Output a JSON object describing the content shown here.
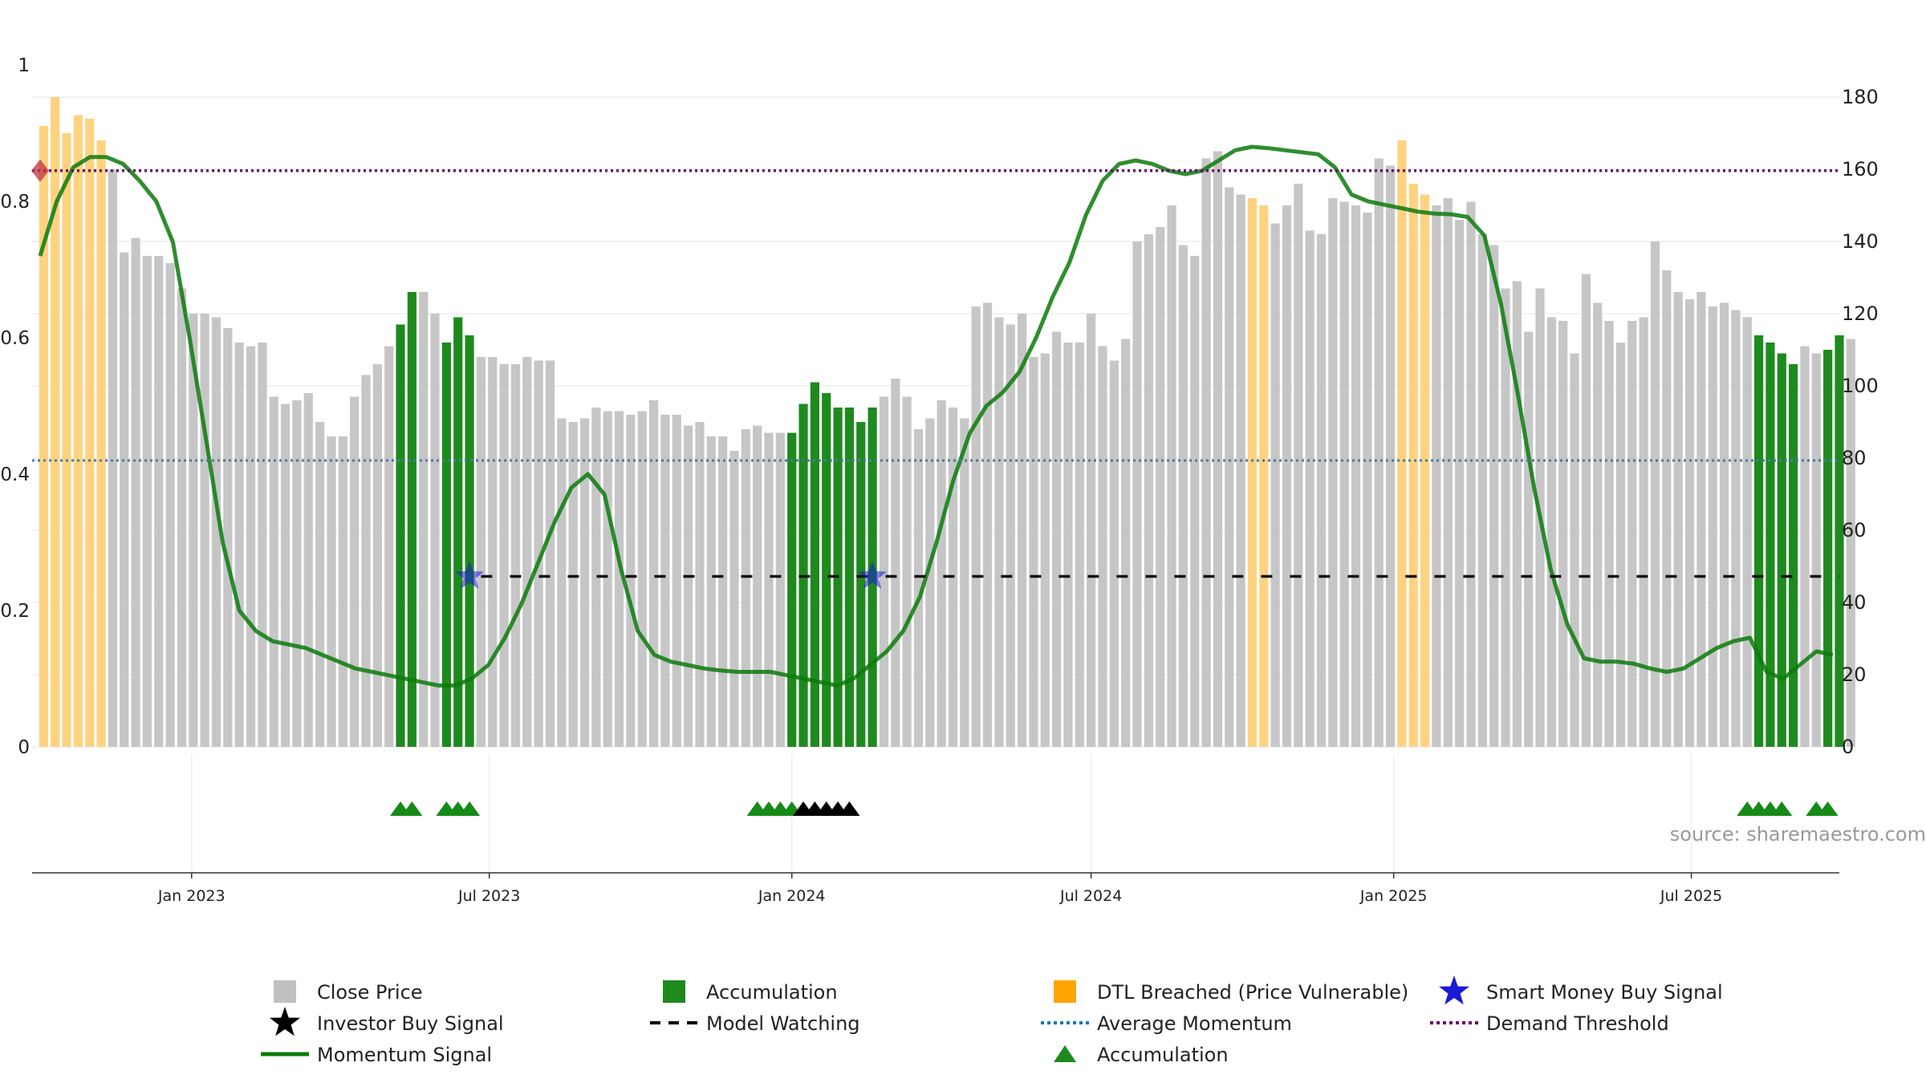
{
  "chart_data": {
    "type": "bar",
    "title": "",
    "xlabel": "",
    "ylabel": "",
    "source_label": "source: sharemaestro.com",
    "x_axis": {
      "start": "2022-09-26",
      "end": "2025-09-29",
      "tick_labels": [
        "Jan 2023",
        "Jul 2023",
        "Jan 2024",
        "Jul 2024",
        "Jan 2025",
        "Jul 2025"
      ],
      "tick_dates": [
        "2023-01-01",
        "2023-07-01",
        "2024-01-01",
        "2024-07-01",
        "2025-01-01",
        "2025-07-01"
      ]
    },
    "left_axis": {
      "ylim": [
        0,
        1
      ],
      "tick_labels": [
        "0",
        "0.2",
        "0.4",
        "0.6",
        "0.8",
        "1"
      ],
      "ticks": [
        0,
        0.2,
        0.4,
        0.6,
        0.8,
        1
      ]
    },
    "right_axis": {
      "ylim": [
        0,
        180
      ],
      "tick_labels": [
        "0",
        "20",
        "40",
        "60",
        "80",
        "100",
        "120",
        "140",
        "160",
        "180"
      ],
      "ticks": [
        0,
        20,
        40,
        60,
        80,
        100,
        120,
        140,
        160,
        180
      ]
    },
    "grid": true,
    "legend_position": "bottom",
    "colors": {
      "close_price": "#c0c0c0",
      "accumulation": "#1e8a1e",
      "dtl_breached": "#ffd27f",
      "smart_money": "#1a1ad6",
      "investor_buy": "#000000",
      "model_watching": "#111111",
      "momentum": "#0a7a0a",
      "average_momentum": "#4a7aa0",
      "demand_threshold": "#6a0a6a"
    },
    "price_series": {
      "name": "Close Price",
      "start_date": "2022-10-03",
      "frequency": "weekly",
      "values": [
        172,
        180,
        170,
        175,
        174,
        168,
        160,
        137,
        141,
        136,
        136,
        134,
        127,
        120,
        120,
        119,
        116,
        112,
        111,
        112,
        97,
        95,
        96,
        98,
        90,
        86,
        86,
        97,
        103,
        106,
        111,
        117,
        126,
        126,
        120,
        112,
        119,
        114,
        108,
        108,
        106,
        106,
        108,
        107,
        107,
        91,
        90,
        91,
        94,
        93,
        93,
        92,
        93,
        96,
        92,
        92,
        89,
        90,
        86,
        86,
        82,
        88,
        89,
        87,
        87,
        87,
        95,
        101,
        98,
        94,
        94,
        90,
        94,
        97,
        102,
        97,
        88,
        91,
        96,
        94,
        91,
        122,
        123,
        119,
        117,
        120,
        108,
        109,
        115,
        112,
        112,
        120,
        111,
        107,
        113,
        140,
        142,
        144,
        150,
        139,
        136,
        163,
        165,
        155,
        153,
        152,
        150,
        145,
        150,
        156,
        143,
        142,
        152,
        151,
        150,
        148,
        163,
        161,
        168,
        156,
        153,
        150,
        152,
        146,
        151,
        142,
        139,
        127,
        129,
        115,
        127,
        119,
        118,
        109,
        131,
        123,
        118,
        112,
        118,
        119,
        140,
        132,
        126,
        124,
        126,
        122,
        123,
        121,
        119,
        114,
        112,
        109,
        106,
        111,
        109,
        110,
        114,
        113
      ],
      "accumulation_indices": [
        31,
        32,
        35,
        36,
        37,
        65,
        66,
        67,
        68,
        69,
        70,
        71,
        72,
        149,
        150,
        151,
        152,
        155,
        156
      ],
      "dtl_indices": [
        0,
        1,
        2,
        3,
        4,
        5,
        105,
        106,
        118,
        119,
        120
      ]
    },
    "momentum_series": {
      "name": "Momentum Signal",
      "values": [
        0.72,
        0.8,
        0.85,
        0.865,
        0.865,
        0.855,
        0.83,
        0.8,
        0.74,
        0.6,
        0.45,
        0.3,
        0.2,
        0.17,
        0.155,
        0.15,
        0.145,
        0.135,
        0.125,
        0.115,
        0.11,
        0.105,
        0.1,
        0.095,
        0.09,
        0.09,
        0.1,
        0.12,
        0.16,
        0.21,
        0.27,
        0.33,
        0.38,
        0.4,
        0.37,
        0.26,
        0.17,
        0.135,
        0.125,
        0.12,
        0.115,
        0.112,
        0.11,
        0.11,
        0.11,
        0.105,
        0.1,
        0.095,
        0.09,
        0.1,
        0.12,
        0.14,
        0.17,
        0.22,
        0.3,
        0.39,
        0.46,
        0.5,
        0.52,
        0.55,
        0.6,
        0.66,
        0.71,
        0.78,
        0.83,
        0.855,
        0.86,
        0.855,
        0.845,
        0.84,
        0.845,
        0.86,
        0.875,
        0.88,
        0.878,
        0.875,
        0.872,
        0.869,
        0.85,
        0.81,
        0.8,
        0.795,
        0.79,
        0.785,
        0.782,
        0.781,
        0.777,
        0.75,
        0.65,
        0.52,
        0.38,
        0.26,
        0.18,
        0.13,
        0.125,
        0.125,
        0.122,
        0.115,
        0.11,
        0.115,
        0.13,
        0.145,
        0.155,
        0.16,
        0.11,
        0.1,
        0.12,
        0.14,
        0.135
      ],
      "avg_momentum": 0.42,
      "demand_threshold": 0.845
    },
    "model_watching": {
      "name": "Model Watching",
      "start_date": "2023-06-26",
      "end_date": "2025-09-29",
      "value": 0.25
    },
    "smart_money_signals": {
      "name": "Smart Money Buy Signal",
      "dates": [
        "2023-06-19",
        "2024-02-19"
      ],
      "value": 0.25
    },
    "demand_marker": {
      "date": "2022-09-26",
      "value": 0.845
    },
    "accumulation_markers": {
      "name": "Accumulation",
      "dates": [
        "2023-05-08",
        "2023-05-15",
        "2023-06-05",
        "2023-06-12",
        "2023-06-19",
        "2023-12-11",
        "2023-12-18",
        "2023-12-25",
        "2024-01-01",
        "2025-08-04",
        "2025-08-11",
        "2025-08-18",
        "2025-08-25",
        "2025-09-15",
        "2025-09-22"
      ]
    },
    "investor_buy_markers": {
      "name": "Investor Buy Signal",
      "dates": [
        "2024-01-08",
        "2024-01-15",
        "2024-01-22",
        "2024-01-29",
        "2024-02-05"
      ]
    },
    "legend": [
      {
        "label": "Close Price",
        "symbol": "square",
        "color": "#c0c0c0"
      },
      {
        "label": "Accumulation",
        "symbol": "square",
        "color": "#1e8a1e"
      },
      {
        "label": "DTL Breached (Price Vulnerable)",
        "symbol": "square",
        "color": "#ffa500"
      },
      {
        "label": "Smart Money Buy Signal",
        "symbol": "star",
        "color": "#1a1ad6"
      },
      {
        "label": "Investor Buy Signal",
        "symbol": "star",
        "color": "#000000"
      },
      {
        "label": "Model Watching",
        "symbol": "dash",
        "color": "#000000"
      },
      {
        "label": "Average Momentum",
        "symbol": "dot",
        "color": "#1f77b4"
      },
      {
        "label": "Demand Threshold",
        "symbol": "dot",
        "color": "#6a0a6a"
      },
      {
        "label": "Momentum Signal",
        "symbol": "line",
        "color": "#0a7a0a"
      },
      {
        "label": "Model Watching",
        "symbol": "none",
        "color": "#000000"
      },
      {
        "label": "Accumulation",
        "symbol": "triangle",
        "color": "#1e8a1e"
      }
    ]
  }
}
